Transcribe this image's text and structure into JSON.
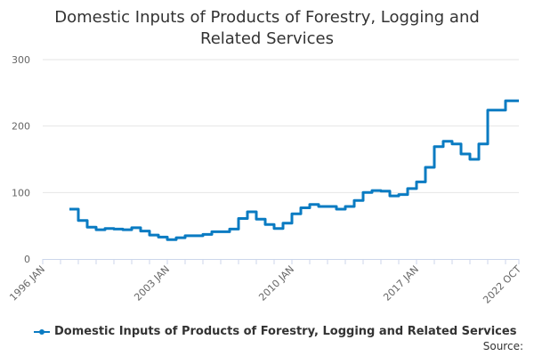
{
  "colors": {
    "series": "#0a7bc2",
    "grid": "#e6e6e6",
    "axis": "#ccd6eb",
    "text": "#666666"
  },
  "source_label": "Source:",
  "chart_data": {
    "type": "line",
    "title": "Domestic Inputs of Products of Forestry, Logging and Related Services",
    "xlabel": "",
    "ylabel": "",
    "ylim": [
      0,
      300
    ],
    "yticks": [
      0,
      100,
      200,
      300
    ],
    "xlim": [
      "1996-01",
      "2022-10"
    ],
    "xticks": [
      "1996 JAN",
      "2003 JAN",
      "2010 JAN",
      "2017 JAN",
      "2022 OCT"
    ],
    "grid": true,
    "legend_position": "bottom-left",
    "series": [
      {
        "name": "Domestic Inputs of Products of Forestry, Logging and Related Services",
        "points": [
          [
            "1997-07",
            75
          ],
          [
            "1998-01",
            58
          ],
          [
            "1998-07",
            48
          ],
          [
            "1999-01",
            44
          ],
          [
            "1999-07",
            46
          ],
          [
            "2000-01",
            45
          ],
          [
            "2000-07",
            44
          ],
          [
            "2001-01",
            47
          ],
          [
            "2001-07",
            42
          ],
          [
            "2002-01",
            36
          ],
          [
            "2002-07",
            33
          ],
          [
            "2003-01",
            29
          ],
          [
            "2003-07",
            32
          ],
          [
            "2004-01",
            35
          ],
          [
            "2004-07",
            35
          ],
          [
            "2005-01",
            37
          ],
          [
            "2005-07",
            41
          ],
          [
            "2006-01",
            41
          ],
          [
            "2006-07",
            45
          ],
          [
            "2007-01",
            61
          ],
          [
            "2007-07",
            71
          ],
          [
            "2008-01",
            60
          ],
          [
            "2008-07",
            52
          ],
          [
            "2009-01",
            46
          ],
          [
            "2009-07",
            54
          ],
          [
            "2010-01",
            68
          ],
          [
            "2010-07",
            77
          ],
          [
            "2011-01",
            82
          ],
          [
            "2011-07",
            79
          ],
          [
            "2012-01",
            79
          ],
          [
            "2012-07",
            75
          ],
          [
            "2013-01",
            79
          ],
          [
            "2013-07",
            88
          ],
          [
            "2014-01",
            100
          ],
          [
            "2014-07",
            103
          ],
          [
            "2015-01",
            102
          ],
          [
            "2015-07",
            95
          ],
          [
            "2016-01",
            97
          ],
          [
            "2016-07",
            106
          ],
          [
            "2017-01",
            116
          ],
          [
            "2017-07",
            138
          ],
          [
            "2018-01",
            169
          ],
          [
            "2018-07",
            177
          ],
          [
            "2019-01",
            173
          ],
          [
            "2019-07",
            158
          ],
          [
            "2020-01",
            150
          ],
          [
            "2020-07",
            173
          ],
          [
            "2021-01",
            224
          ],
          [
            "2021-07",
            224
          ],
          [
            "2022-01",
            238
          ],
          [
            "2022-10",
            238
          ]
        ]
      }
    ]
  }
}
